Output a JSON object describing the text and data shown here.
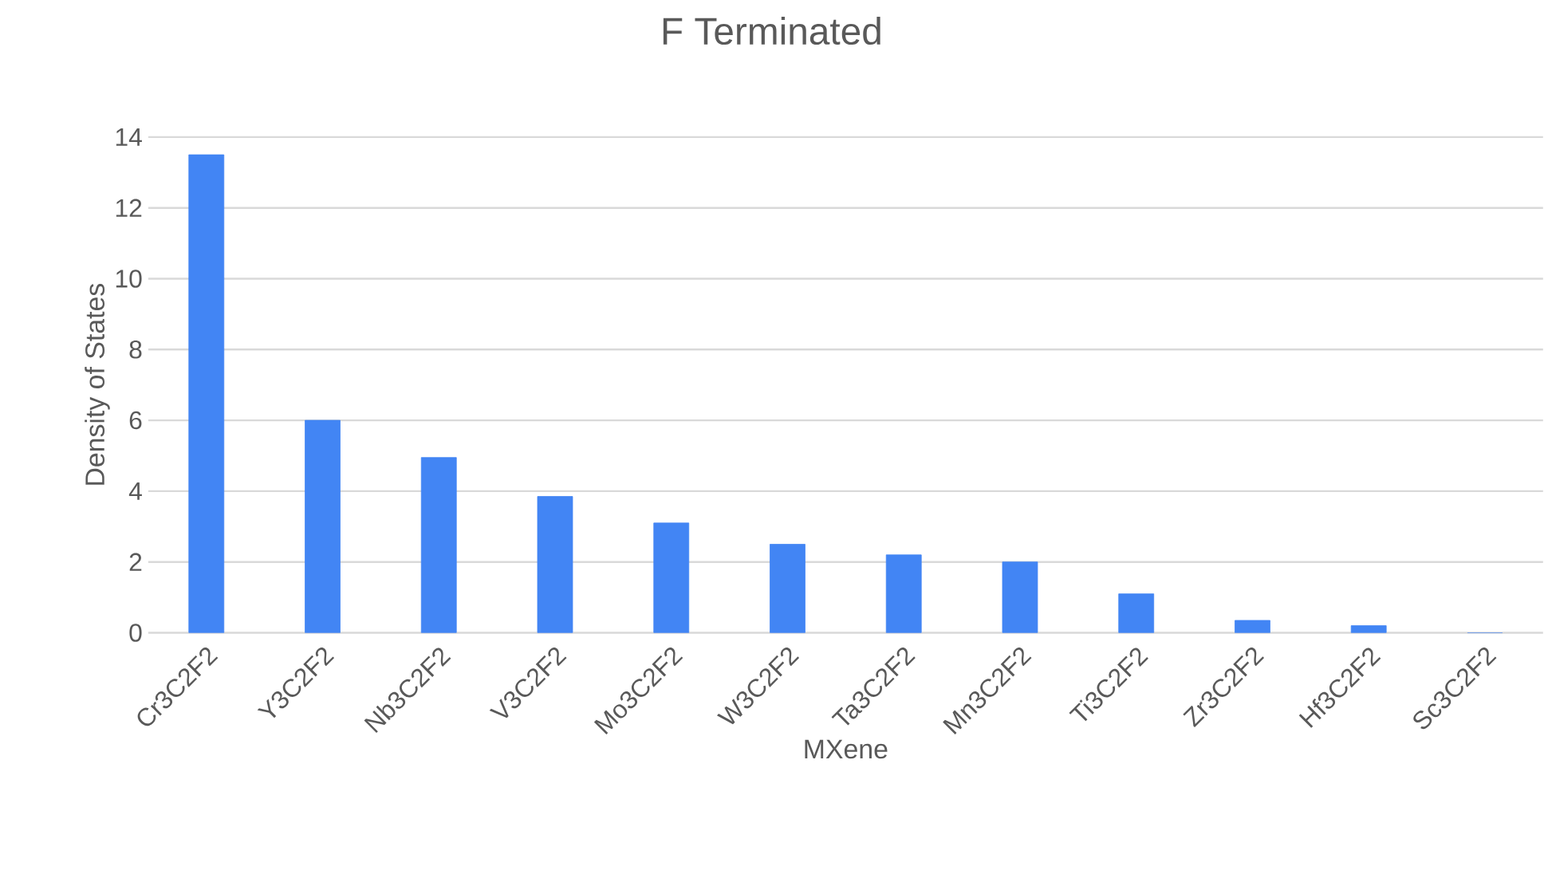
{
  "chart_data": {
    "type": "bar",
    "title": "F Terminated",
    "xlabel": "MXene",
    "ylabel": "Density of States",
    "categories": [
      "Cr3C2F2",
      "Y3C2F2",
      "Nb3C2F2",
      "V3C2F2",
      "Mo3C2F2",
      "W3C2F2",
      "Ta3C2F2",
      "Mn3C2F2",
      "Ti3C2F2",
      "Zr3C2F2",
      "Hf3C2F2",
      "Sc3C2F2"
    ],
    "values": [
      13.5,
      6.0,
      4.95,
      3.85,
      3.1,
      2.5,
      2.2,
      2.0,
      1.1,
      0.35,
      0.2,
      0
    ],
    "color": "#4285f4",
    "ylim": [
      0,
      14
    ],
    "yticks": [
      0,
      2,
      4,
      6,
      8,
      10,
      12,
      14
    ],
    "grid": "y"
  }
}
